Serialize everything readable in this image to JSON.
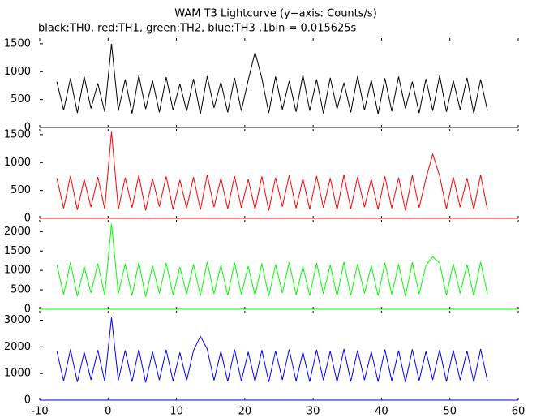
{
  "chart_data": [
    {
      "type": "line",
      "title": "WAM T3 Lightcurve (y−axis: Counts/s)",
      "subtitle": "black:TH0, red:TH1, green:TH2, blue:TH3 ,1bin = 0.015625s",
      "color": "#000000",
      "x": [
        -7.5,
        -6.5,
        -5.5,
        -4.5,
        -3.5,
        -2.5,
        -1.5,
        -0.5,
        0.5,
        1.5,
        2.5,
        3.5,
        4.5,
        5.5,
        6.5,
        7.5,
        8.5,
        9.5,
        10.5,
        11.5,
        12.5,
        13.5,
        14.5,
        15.5,
        16.5,
        17.5,
        18.5,
        19.5,
        20.5,
        21.5,
        22.5,
        23.5,
        24.5,
        25.5,
        26.5,
        27.5,
        28.5,
        29.5,
        30.5,
        31.5,
        32.5,
        33.5,
        34.5,
        35.5,
        36.5,
        37.5,
        38.5,
        39.5,
        40.5,
        41.5,
        42.5,
        43.5,
        44.5,
        45.5,
        46.5,
        47.5,
        48.5,
        49.5,
        50.5,
        51.5,
        52.5,
        53.5,
        54.5,
        55.5
      ],
      "values": [
        820,
        310,
        880,
        260,
        910,
        340,
        790,
        280,
        1500,
        300,
        860,
        250,
        930,
        330,
        840,
        270,
        900,
        310,
        780,
        290,
        870,
        240,
        920,
        350,
        810,
        270,
        890,
        300,
        850,
        1350,
        880,
        260,
        910,
        320,
        830,
        280,
        940,
        300,
        860,
        250,
        890,
        330,
        800,
        270,
        920,
        310,
        850,
        240,
        880,
        290,
        910,
        340,
        820,
        260,
        870,
        300,
        930,
        280,
        840,
        320,
        890,
        250,
        860,
        300
      ],
      "xlim": [
        -10,
        60
      ],
      "xticks": [
        -10,
        0,
        10,
        20,
        30,
        40,
        50,
        60
      ],
      "ylim": [
        0,
        1600
      ],
      "yticks": [
        0,
        500,
        1000,
        1500
      ]
    },
    {
      "type": "line",
      "color": "#ff0000",
      "x": [
        -7.5,
        -6.5,
        -5.5,
        -4.5,
        -3.5,
        -2.5,
        -1.5,
        -0.5,
        0.5,
        1.5,
        2.5,
        3.5,
        4.5,
        5.5,
        6.5,
        7.5,
        8.5,
        9.5,
        10.5,
        11.5,
        12.5,
        13.5,
        14.5,
        15.5,
        16.5,
        17.5,
        18.5,
        19.5,
        20.5,
        21.5,
        22.5,
        23.5,
        24.5,
        25.5,
        26.5,
        27.5,
        28.5,
        29.5,
        30.5,
        31.5,
        32.5,
        33.5,
        34.5,
        35.5,
        36.5,
        37.5,
        38.5,
        39.5,
        40.5,
        41.5,
        42.5,
        43.5,
        44.5,
        45.5,
        46.5,
        47.5,
        48.5,
        49.5,
        50.5,
        51.5,
        52.5,
        53.5,
        54.5,
        55.5
      ],
      "values": [
        720,
        180,
        760,
        150,
        700,
        200,
        740,
        170,
        1550,
        160,
        730,
        190,
        770,
        140,
        710,
        210,
        750,
        160,
        690,
        180,
        740,
        150,
        780,
        200,
        720,
        170,
        760,
        190,
        700,
        160,
        750,
        140,
        730,
        210,
        770,
        180,
        710,
        160,
        760,
        190,
        720,
        150,
        780,
        170,
        740,
        200,
        700,
        160,
        750,
        180,
        730,
        140,
        770,
        190,
        710,
        1150,
        760,
        170,
        740,
        200,
        720,
        160,
        780,
        150
      ],
      "xlim": [
        -10,
        60
      ],
      "xticks": [
        -10,
        0,
        10,
        20,
        30,
        40,
        50,
        60
      ],
      "ylim": [
        0,
        1600
      ],
      "yticks": [
        0,
        500,
        1000,
        1500
      ]
    },
    {
      "type": "line",
      "color": "#00ff00",
      "x": [
        -7.5,
        -6.5,
        -5.5,
        -4.5,
        -3.5,
        -2.5,
        -1.5,
        -0.5,
        0.5,
        1.5,
        2.5,
        3.5,
        4.5,
        5.5,
        6.5,
        7.5,
        8.5,
        9.5,
        10.5,
        11.5,
        12.5,
        13.5,
        14.5,
        15.5,
        16.5,
        17.5,
        18.5,
        19.5,
        20.5,
        21.5,
        22.5,
        23.5,
        24.5,
        25.5,
        26.5,
        27.5,
        28.5,
        29.5,
        30.5,
        31.5,
        32.5,
        33.5,
        34.5,
        35.5,
        36.5,
        37.5,
        38.5,
        39.5,
        40.5,
        41.5,
        42.5,
        43.5,
        44.5,
        45.5,
        46.5,
        47.5,
        48.5,
        49.5,
        50.5,
        51.5,
        52.5,
        53.5,
        54.5,
        55.5
      ],
      "values": [
        1150,
        380,
        1200,
        330,
        1100,
        420,
        1180,
        360,
        2200,
        400,
        1170,
        350,
        1210,
        320,
        1120,
        410,
        1190,
        370,
        1090,
        390,
        1160,
        340,
        1220,
        400,
        1130,
        360,
        1200,
        380,
        1110,
        350,
        1180,
        330,
        1150,
        420,
        1210,
        370,
        1100,
        350,
        1190,
        400,
        1140,
        340,
        1220,
        360,
        1170,
        410,
        1120,
        350,
        1200,
        380,
        1160,
        330,
        1210,
        390,
        1130,
        1350,
        1190,
        360,
        1170,
        410,
        1150,
        340,
        1220,
        380
      ],
      "xlim": [
        -10,
        60
      ],
      "xticks": [
        -10,
        0,
        10,
        20,
        30,
        40,
        50,
        60
      ],
      "ylim": [
        0,
        2300
      ],
      "yticks": [
        0,
        500,
        1000,
        1500,
        2000
      ]
    },
    {
      "type": "line",
      "color": "#0000ff",
      "x": [
        -7.5,
        -6.5,
        -5.5,
        -4.5,
        -3.5,
        -2.5,
        -1.5,
        -0.5,
        0.5,
        1.5,
        2.5,
        3.5,
        4.5,
        5.5,
        6.5,
        7.5,
        8.5,
        9.5,
        10.5,
        11.5,
        12.5,
        13.5,
        14.5,
        15.5,
        16.5,
        17.5,
        18.5,
        19.5,
        20.5,
        21.5,
        22.5,
        23.5,
        24.5,
        25.5,
        26.5,
        27.5,
        28.5,
        29.5,
        30.5,
        31.5,
        32.5,
        33.5,
        34.5,
        35.5,
        36.5,
        37.5,
        38.5,
        39.5,
        40.5,
        41.5,
        42.5,
        43.5,
        44.5,
        45.5,
        46.5,
        47.5,
        48.5,
        49.5,
        50.5,
        51.5,
        52.5,
        53.5,
        54.5,
        55.5
      ],
      "values": [
        1850,
        720,
        1900,
        680,
        1800,
        760,
        1880,
        700,
        3100,
        740,
        1870,
        690,
        1910,
        660,
        1820,
        750,
        1890,
        710,
        1790,
        730,
        1860,
        2400,
        1920,
        740,
        1830,
        700,
        1900,
        720,
        1810,
        690,
        1880,
        680,
        1850,
        760,
        1910,
        710,
        1800,
        690,
        1890,
        740,
        1840,
        680,
        1920,
        700,
        1870,
        750,
        1820,
        690,
        1900,
        720,
        1860,
        670,
        1910,
        730,
        1830,
        760,
        1890,
        700,
        1870,
        750,
        1850,
        680,
        1920,
        720
      ],
      "xlim": [
        -10,
        60
      ],
      "xticks": [
        -10,
        0,
        10,
        20,
        30,
        40,
        50,
        60
      ],
      "ylim": [
        0,
        3350
      ],
      "yticks": [
        0,
        1000,
        2000,
        3000
      ]
    }
  ]
}
